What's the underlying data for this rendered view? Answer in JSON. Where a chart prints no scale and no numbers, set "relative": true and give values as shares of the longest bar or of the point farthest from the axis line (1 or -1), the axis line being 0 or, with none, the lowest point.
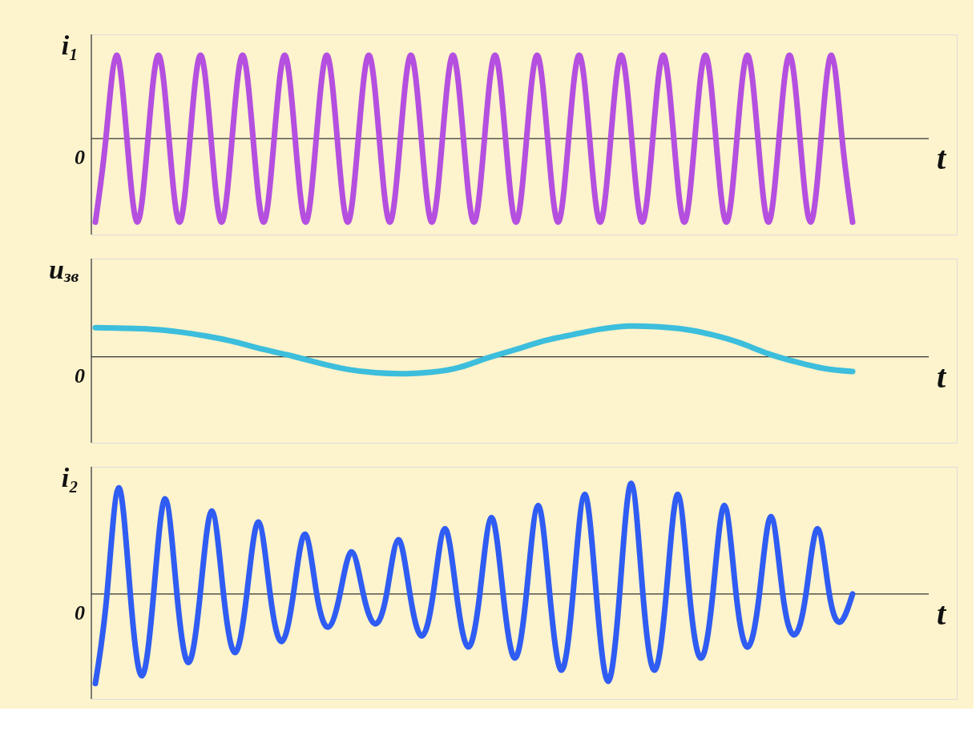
{
  "chart_data": [
    {
      "type": "line",
      "relative": true,
      "ylabel": "i₁",
      "xlabel": "t",
      "annotations": [
        "0"
      ],
      "categories": [
        null,
        null,
        null,
        null,
        null,
        null,
        null,
        null,
        null,
        null,
        null,
        null,
        null,
        null,
        null,
        null,
        null,
        null,
        null,
        null,
        null,
        null,
        null,
        null,
        null,
        null,
        null,
        null,
        null,
        null,
        null,
        null,
        null,
        null,
        null,
        null,
        null,
        null,
        null,
        null,
        null,
        null,
        null,
        null,
        null,
        null,
        null,
        null,
        null,
        null,
        null,
        null,
        null,
        null,
        null,
        null,
        null,
        null,
        null,
        null,
        null,
        null,
        null,
        null,
        null,
        null,
        null,
        null,
        null,
        null,
        null,
        null,
        null
      ],
      "series": [
        {
          "color": "#b44fe0",
          "values": [
            -1,
            0,
            1,
            0,
            -1,
            0,
            1,
            0,
            -1,
            0,
            1,
            0,
            -1,
            0,
            1,
            0,
            -1,
            0,
            1,
            0,
            -1,
            0,
            1,
            0,
            -1,
            0,
            1,
            0,
            -1,
            0,
            1,
            0,
            -1,
            0,
            1,
            0,
            -1,
            0,
            1,
            0,
            -1,
            0,
            1,
            0,
            -1,
            0,
            1,
            0,
            -1,
            0,
            1,
            0,
            -1,
            0,
            1,
            0,
            -1,
            0,
            1,
            0,
            -1,
            0,
            1,
            0,
            -1,
            0,
            1,
            0,
            -1,
            0,
            1,
            0,
            -1
          ]
        }
      ]
    },
    {
      "type": "line",
      "relative": true,
      "ylabel": "u$_{зв}$",
      "xlabel": "t",
      "annotations": [
        "0"
      ],
      "categories": [
        null,
        null,
        null,
        null,
        null,
        null,
        null,
        null,
        null,
        null,
        null,
        null,
        null,
        null,
        null,
        null,
        null,
        null,
        null,
        null,
        null,
        null,
        null,
        null,
        null,
        null,
        null,
        null
      ],
      "series": [
        {
          "color": "#3cbedc",
          "values": [
            0.95,
            0.93,
            0.9,
            0.81,
            0.67,
            0.48,
            0.24,
            0.03,
            -0.21,
            -0.41,
            -0.52,
            -0.55,
            -0.5,
            -0.34,
            -0.03,
            0.24,
            0.52,
            0.72,
            0.9,
            1,
            0.98,
            0.9,
            0.72,
            0.45,
            0.1,
            -0.17,
            -0.38,
            -0.48
          ]
        }
      ]
    },
    {
      "type": "line",
      "relative": true,
      "ylabel": "i₂",
      "xlabel": "t",
      "annotations": [
        "0"
      ],
      "categories": [
        null,
        null,
        null,
        null,
        null,
        null,
        null,
        null,
        null,
        null,
        null,
        null,
        null,
        null,
        null,
        null,
        null,
        null,
        null,
        null,
        null,
        null,
        null,
        null,
        null,
        null,
        null,
        null,
        null,
        null,
        null,
        null,
        null,
        null,
        null,
        null,
        null,
        null,
        null,
        null,
        null,
        null,
        null,
        null,
        null,
        null,
        null,
        null,
        null,
        null,
        null,
        null,
        null,
        null,
        null,
        null,
        null,
        null,
        null,
        null,
        null,
        null,
        null,
        null,
        null,
        null
      ],
      "series": [
        {
          "color": "#2f5cf2",
          "values": [
            -0.81,
            0,
            0.96,
            0,
            -0.74,
            0,
            0.86,
            0,
            -0.62,
            0,
            0.75,
            0,
            -0.53,
            0,
            0.65,
            0,
            -0.43,
            0,
            0.54,
            0,
            -0.3,
            0,
            0.38,
            0,
            -0.27,
            0,
            0.49,
            0,
            -0.38,
            0,
            0.59,
            0,
            -0.48,
            0,
            0.69,
            0,
            -0.58,
            0,
            0.8,
            0,
            -0.69,
            0,
            0.9,
            0,
            -0.79,
            0,
            1,
            0,
            -0.69,
            0,
            0.9,
            0,
            -0.58,
            0,
            0.8,
            0,
            -0.48,
            0,
            0.7,
            0,
            -0.37,
            0,
            0.59,
            0,
            -0.25,
            0
          ]
        }
      ]
    }
  ]
}
